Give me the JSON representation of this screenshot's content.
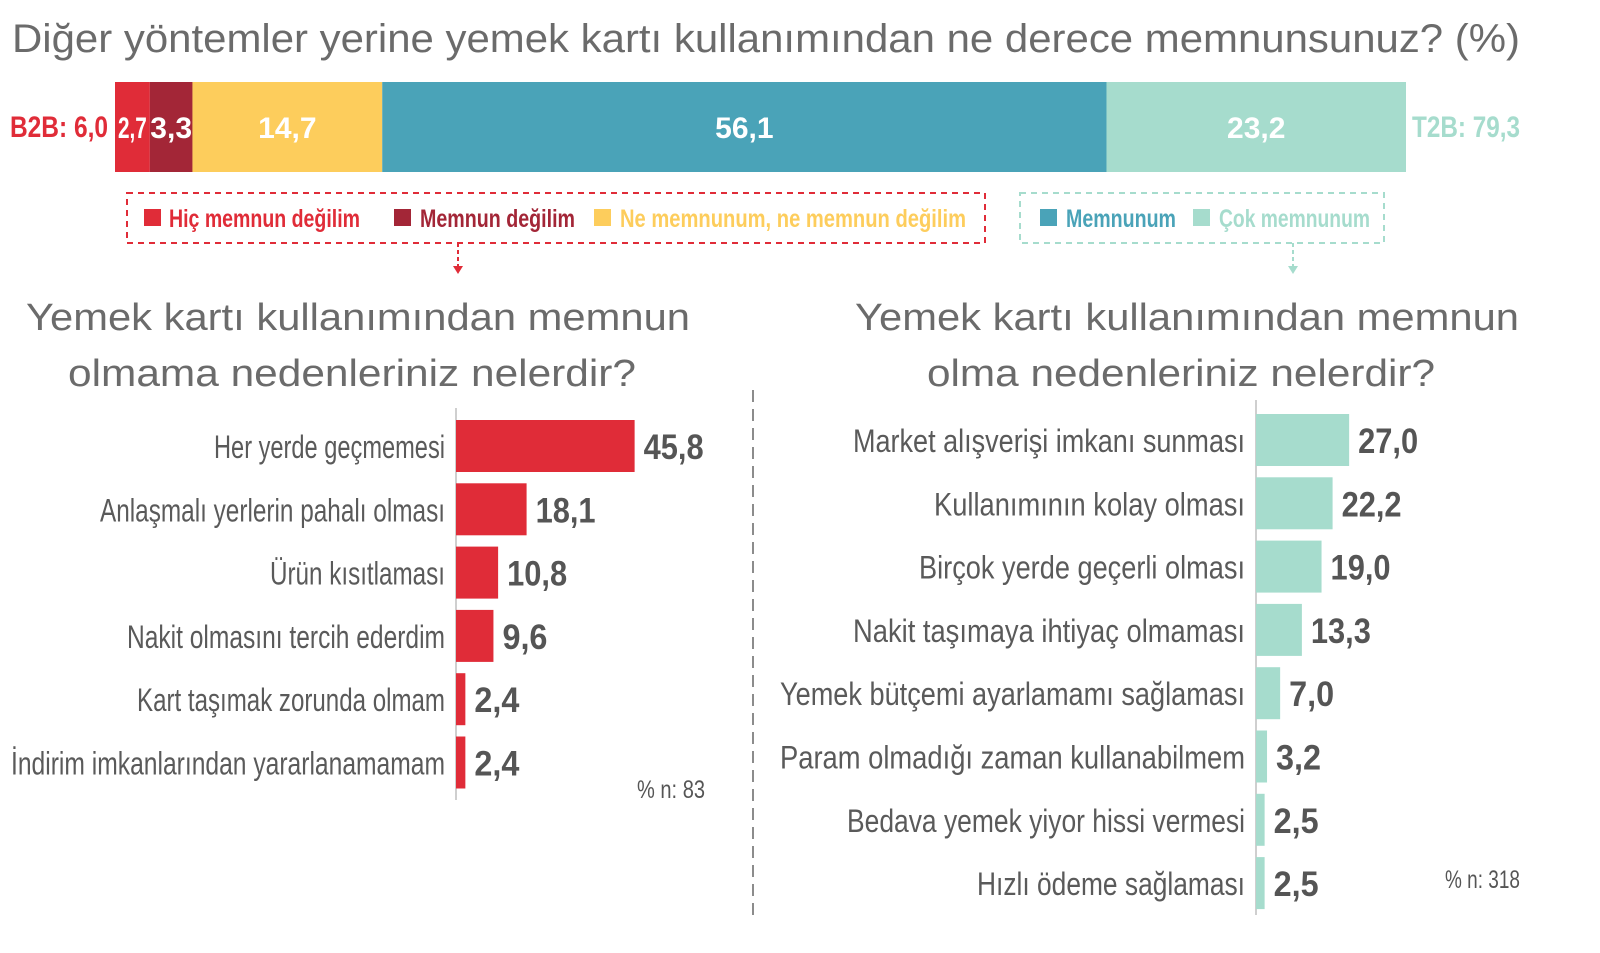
{
  "chart_data": [
    {
      "type": "bar",
      "orientation": "horizontal-stacked",
      "title": "Diğer yöntemler yerine yemek kartı kullanımından ne derece memnunsunuz? (%)",
      "b2b_label": "B2B: 6,0",
      "t2b_label": "T2B: 79,3",
      "series": [
        {
          "name": "Hiç memnun değilim",
          "value": 2.7,
          "label": "2,7",
          "color": "#E02C38"
        },
        {
          "name": "Memnun değilim",
          "value": 3.3,
          "label": "3,3",
          "color": "#A32637"
        },
        {
          "name": "Ne memnunum, ne memnun değilim",
          "value": 14.7,
          "label": "14,7",
          "color": "#FDCD5C"
        },
        {
          "name": "Memnunum",
          "value": 56.1,
          "label": "56,1",
          "color": "#4AA3B8"
        },
        {
          "name": "Çok memnunum",
          "value": 23.2,
          "label": "23,2",
          "color": "#A6DCCD"
        }
      ]
    },
    {
      "type": "bar",
      "orientation": "horizontal",
      "title": [
        "Yemek kartı kullanımından memnun",
        "olmama nedenleriniz nelerdir?"
      ],
      "color": "#E02C38",
      "categories": [
        "Her yerde geçmemesi",
        "Anlaşmalı yerlerin pahalı olması",
        "Ürün kısıtlaması",
        "Nakit olmasını tercih ederdim",
        "Kart taşımak zorunda olmam",
        "İndirim imkanlarından yararlanamamam"
      ],
      "values": [
        45.8,
        18.1,
        10.8,
        9.6,
        2.4,
        2.4
      ],
      "labels": [
        "45,8",
        "18,1",
        "10,8",
        "9,6",
        "2,4",
        "2,4"
      ],
      "note": "% n: 83"
    },
    {
      "type": "bar",
      "orientation": "horizontal",
      "title": [
        "Yemek kartı kullanımından memnun",
        "olma nedenleriniz nelerdir?"
      ],
      "color": "#A6DCCD",
      "categories": [
        "Market alışverişi imkanı sunması",
        "Kullanımının kolay olması",
        "Birçok yerde geçerli olması",
        "Nakit taşımaya ihtiyaç olmaması",
        "Yemek bütçemi ayarlamamı sağlaması",
        "Param olmadığı zaman kullanabilmem",
        "Bedava yemek yiyor hissi vermesi",
        "Hızlı ödeme sağlaması"
      ],
      "values": [
        27.0,
        22.2,
        19.0,
        13.3,
        7.0,
        3.2,
        2.5,
        2.5
      ],
      "labels": [
        "27,0",
        "22,2",
        "19,0",
        "13,3",
        "7,0",
        "3,2",
        "2,5",
        "2,5"
      ],
      "note": "% n: 318"
    }
  ],
  "colors": {
    "b2b": "#E02C38",
    "t2b": "#A6DCCD",
    "value_text": "#555555",
    "category_text": "#5A5A5A",
    "title_text": "#6B6B6B"
  }
}
